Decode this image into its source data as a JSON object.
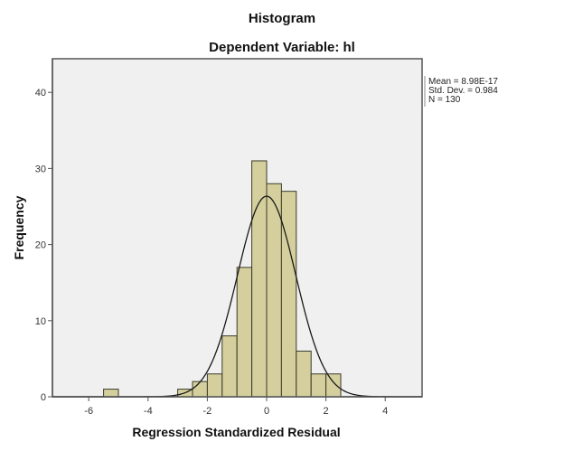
{
  "chart_data": {
    "type": "bar",
    "title": "Histogram",
    "subtitle": "Dependent Variable: hl",
    "xlabel": "Regression Standardized Residual",
    "ylabel": "Frequency",
    "xlim": [
      -7.2,
      5.2
    ],
    "ylim": [
      0,
      44.5
    ],
    "xticks": [
      -6,
      -4,
      -2,
      0,
      2,
      4
    ],
    "yticks": [
      0,
      10,
      20,
      30,
      40
    ],
    "bin_width": 0.5,
    "bins": [
      {
        "start": -5.5,
        "end": -5.0,
        "count": 1
      },
      {
        "start": -3.0,
        "end": -2.5,
        "count": 1
      },
      {
        "start": -2.5,
        "end": -2.0,
        "count": 2
      },
      {
        "start": -2.0,
        "end": -1.5,
        "count": 3
      },
      {
        "start": -1.5,
        "end": -1.0,
        "count": 8
      },
      {
        "start": -1.0,
        "end": -0.5,
        "count": 17
      },
      {
        "start": -0.5,
        "end": 0.0,
        "count": 31
      },
      {
        "start": 0.0,
        "end": 0.5,
        "count": 28
      },
      {
        "start": 0.5,
        "end": 1.0,
        "count": 27
      },
      {
        "start": 1.0,
        "end": 1.5,
        "count": 6
      },
      {
        "start": 1.5,
        "end": 2.0,
        "count": 3
      },
      {
        "start": 2.0,
        "end": 2.5,
        "count": 3
      }
    ],
    "normal_curve": {
      "mean": 8.98e-17,
      "sd": 0.984,
      "n": 130
    },
    "grid": false,
    "legend_position": "right"
  },
  "stats": {
    "mean": "Mean = 8.98E-17",
    "std_dev": "Std. Dev. = 0.984",
    "n": "N = 130"
  },
  "colors": {
    "bar_fill": "#d4cf9c",
    "bar_stroke": "#3a3a2a",
    "plot_bg": "#f0f0f0",
    "axis": "#555555",
    "curve": "#1a1a1a"
  }
}
